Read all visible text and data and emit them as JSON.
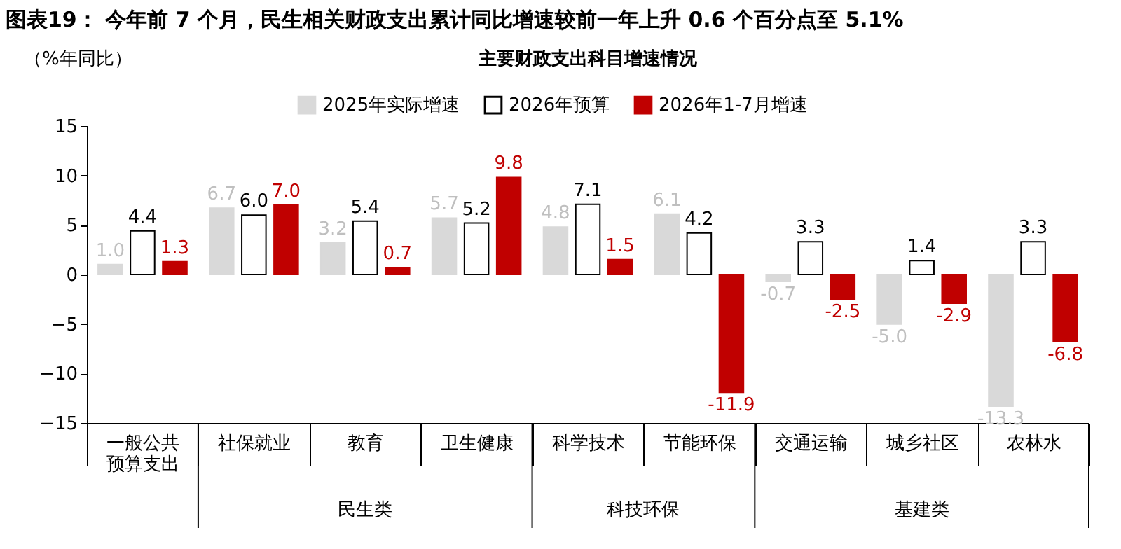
{
  "chart_data": {
    "type": "bar",
    "title": "图表19：  今年前 7 个月，民生相关财政支出累计同比增速较前一年上升 0.6 个百分点至 5.1%",
    "subtitle": "主要财政支出科目增速情况",
    "ylabel": "（%年同比）",
    "categories": [
      "一般公共预算支出",
      "社保就业",
      "教育",
      "卫生健康",
      "科学技术",
      "节能环保",
      "交通运输",
      "城乡社区",
      "农林水"
    ],
    "series": [
      {
        "name": "2025年实际增速",
        "color": "#d9d9d9",
        "values": [
          1.0,
          6.7,
          3.2,
          5.7,
          4.8,
          6.1,
          -0.7,
          -5.0,
          -13.3
        ],
        "value_labels": [
          "1.0",
          "6.7",
          "3.2",
          "5.7",
          "4.8",
          "6.1",
          "-0.7",
          "-5.0",
          "-13.3"
        ]
      },
      {
        "name": "2026年预算",
        "color": "#ffffff",
        "values": [
          4.4,
          6.0,
          5.4,
          5.2,
          7.1,
          4.2,
          3.3,
          1.4,
          3.3
        ],
        "value_labels": [
          "4.4",
          "6.0",
          "5.4",
          "5.2",
          "7.1",
          "4.2",
          "3.3",
          "1.4",
          "3.3"
        ]
      },
      {
        "name": "2026年1-7月增速",
        "color": "#c00000",
        "values": [
          1.3,
          7.0,
          0.7,
          9.8,
          1.5,
          -11.9,
          -2.5,
          -2.9,
          -6.8
        ],
        "value_labels": [
          "1.3",
          "7.0",
          "0.7",
          "9.8",
          "1.5",
          "-11.9",
          "-2.5",
          "-2.9",
          "-6.8"
        ]
      }
    ],
    "ylim": [
      -15,
      15
    ],
    "yticks": [
      -15,
      -10,
      -5,
      0,
      5,
      10,
      15
    ],
    "grid": false,
    "legend": "top",
    "annotations": [
      "民生类",
      "科技环保",
      "基建类"
    ]
  }
}
